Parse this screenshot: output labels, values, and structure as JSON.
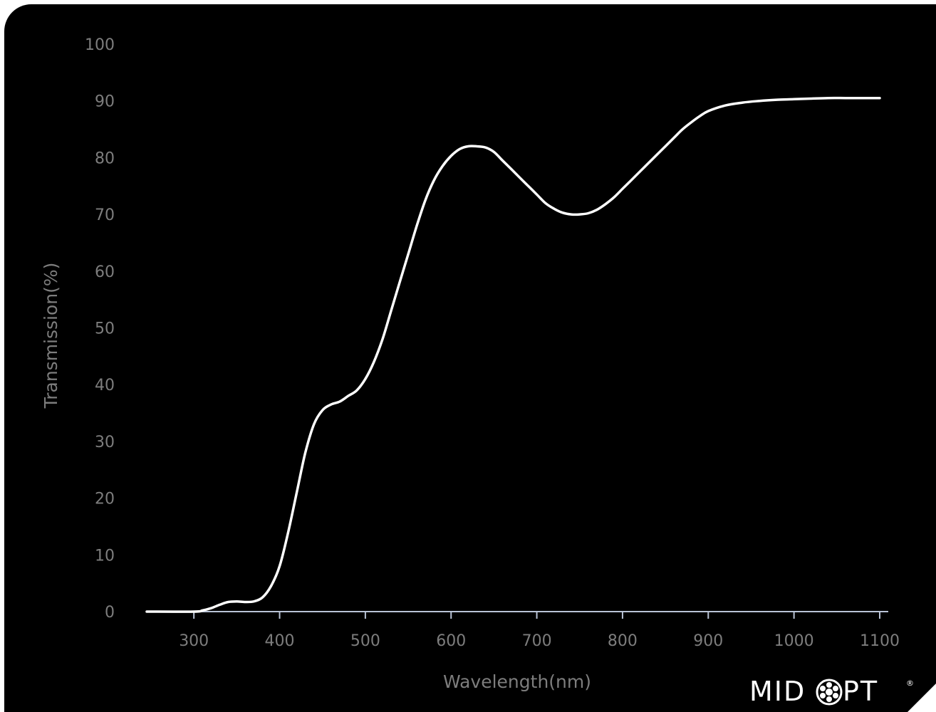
{
  "chart_data": {
    "type": "line",
    "title": "",
    "xlabel": "Wavelength(nm)",
    "ylabel": "Transmission(%)",
    "xlim": [
      245,
      1105
    ],
    "ylim": [
      0,
      100
    ],
    "x_ticks": [
      300,
      400,
      500,
      600,
      700,
      800,
      900,
      1000,
      1100
    ],
    "y_ticks": [
      0,
      10,
      20,
      30,
      40,
      50,
      60,
      70,
      80,
      90,
      100
    ],
    "grid": false,
    "line_color": "#ffffff",
    "background": "#000000",
    "series": [
      {
        "x": [
          245,
          300,
          310,
          320,
          330,
          340,
          350,
          360,
          370,
          380,
          390,
          400,
          410,
          420,
          430,
          440,
          450,
          460,
          470,
          480,
          490,
          500,
          510,
          520,
          530,
          540,
          550,
          560,
          570,
          580,
          590,
          600,
          610,
          620,
          630,
          640,
          650,
          660,
          670,
          680,
          690,
          700,
          710,
          720,
          730,
          740,
          750,
          760,
          770,
          780,
          790,
          800,
          810,
          820,
          830,
          840,
          850,
          860,
          870,
          880,
          890,
          900,
          920,
          940,
          960,
          980,
          1000,
          1020,
          1040,
          1060,
          1080,
          1100
        ],
        "y": [
          0,
          0,
          0.2,
          0.6,
          1.2,
          1.7,
          1.8,
          1.7,
          1.8,
          2.5,
          4.5,
          8,
          14,
          21,
          28,
          33,
          35.5,
          36.5,
          37,
          38,
          39,
          41,
          44,
          48,
          53,
          58,
          63,
          68,
          72.5,
          76,
          78.5,
          80.3,
          81.5,
          82,
          82,
          81.8,
          81,
          79.5,
          78,
          76.5,
          75,
          73.5,
          72,
          71,
          70.3,
          70,
          70,
          70.2,
          70.8,
          71.8,
          73,
          74.5,
          76,
          77.5,
          79,
          80.5,
          82,
          83.5,
          85,
          86.2,
          87.3,
          88.2,
          89.2,
          89.7,
          90,
          90.2,
          90.3,
          90.4,
          90.5,
          90.5,
          90.5,
          90.5
        ]
      }
    ]
  },
  "brand": {
    "logo_text_left": "MID",
    "logo_text_right": "PT",
    "logo_icon": "lens-rosette-icon",
    "logo_mark": "®"
  }
}
